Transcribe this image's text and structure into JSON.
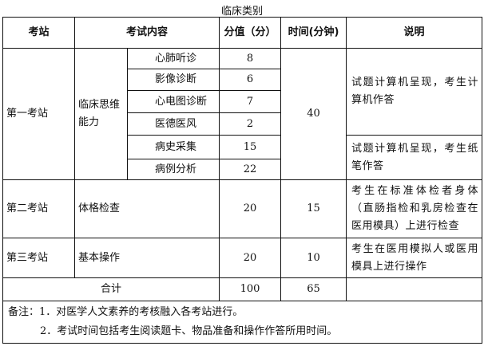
{
  "title": "临床类别",
  "headers": [
    "考站",
    "考试内容",
    "分值（分）",
    "时间(分钟)",
    "说明"
  ],
  "station1": {
    "name": "第一考站",
    "category": "临床思维能力",
    "items": [
      {
        "name": "心肺听诊",
        "score": "8"
      },
      {
        "name": "影像诊断",
        "score": "6"
      },
      {
        "name": "心电图诊断",
        "score": "7"
      },
      {
        "name": "医德医风",
        "score": "2"
      },
      {
        "name": "病史采集",
        "score": "15"
      },
      {
        "name": "病例分析",
        "score": "22"
      }
    ],
    "time": "40",
    "desc1": "试题计算机呈现，考生计算机作答",
    "desc2": "试题计算机呈现，考生纸笔作答"
  },
  "station2": {
    "name": "第二考站",
    "content": "体格检查",
    "score": "20",
    "time": "15",
    "desc": "考生在标准体检者身体（直肠指检和乳房检查在医用模具）上进行检查"
  },
  "station3": {
    "name": "第三考站",
    "content": "基本操作",
    "score": "20",
    "time": "10",
    "desc": "考生在医用模拟人或医用模具上进行操作"
  },
  "total": {
    "label": "合计",
    "score": "100",
    "time": "65"
  },
  "notes": [
    "备注：1．对医学人文素养的考核融入各考站进行。",
    "2．考试时间包括考生阅读题卡、物品准备和操作作答所用时间。"
  ]
}
